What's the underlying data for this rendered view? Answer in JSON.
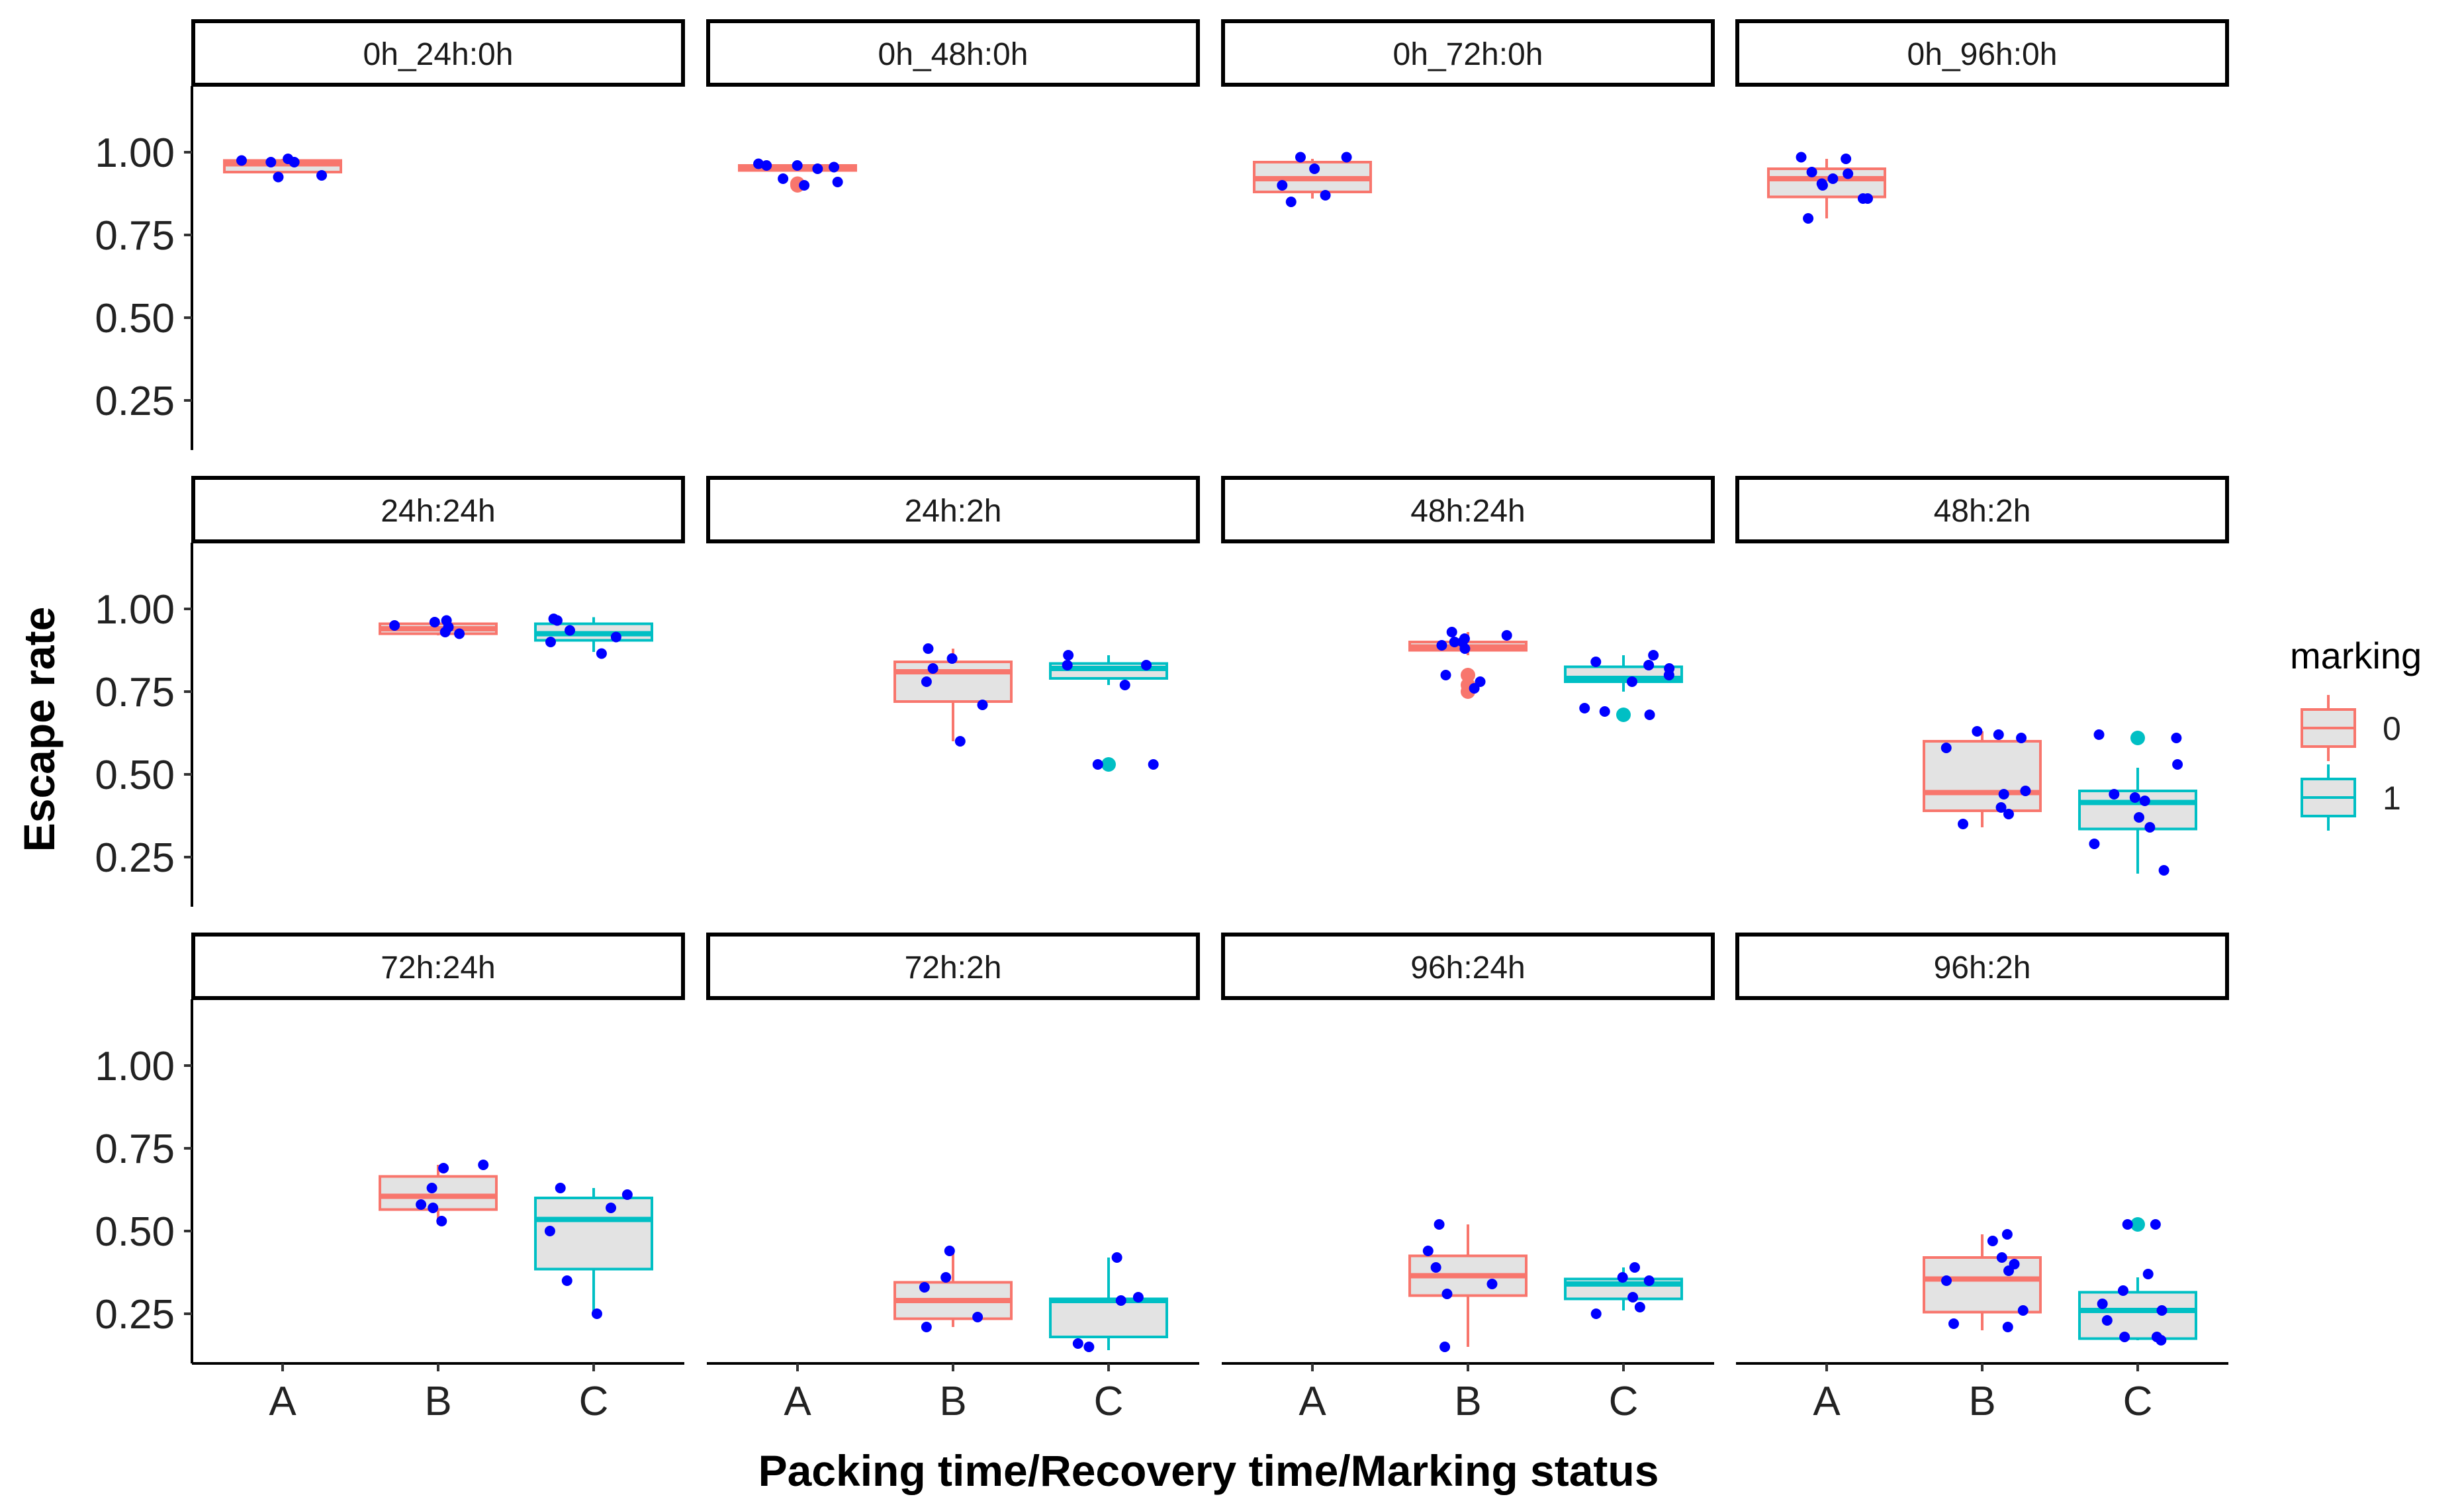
{
  "chart_data": {
    "type": "boxplot",
    "ylabel": "Escape rate",
    "xlabel": "Packing time/Recovery time/Marking status",
    "categories": [
      "A",
      "B",
      "C"
    ],
    "y_ticks": [
      "1.00",
      "0.75",
      "0.50",
      "0.25"
    ],
    "y_tick_values": [
      1.0,
      0.75,
      0.5,
      0.25
    ],
    "ylim": [
      0.1,
      1.2
    ],
    "legend": {
      "title": "marking",
      "placement": "right",
      "entries": [
        {
          "label": "0",
          "color": "#F8766D"
        },
        {
          "label": "1",
          "color": "#00BFC4"
        }
      ]
    },
    "colors": {
      "box_fill": "#E3E3E3",
      "point": "#0000FF",
      "marking_0": "#F8766D",
      "marking_1": "#00BFC4"
    },
    "panels": [
      {
        "label": "0h_24h:0h",
        "boxes": [
          {
            "category": "A",
            "marking": "0",
            "q1": 0.94,
            "median": 0.965,
            "q3": 0.975,
            "whisker_low": 0.94,
            "whisker_high": 0.98,
            "outliers": [],
            "points": [
              0.93,
              0.975,
              0.98,
              0.97,
              0.925,
              0.97
            ]
          }
        ]
      },
      {
        "label": "0h_48h:0h",
        "boxes": [
          {
            "category": "A",
            "marking": "0",
            "q1": 0.945,
            "median": 0.955,
            "q3": 0.96,
            "whisker_low": 0.945,
            "whisker_high": 0.965,
            "outliers": [
              0.9,
              0.905
            ],
            "points": [
              0.91,
              0.965,
              0.96,
              0.96,
              0.955,
              0.92,
              0.9,
              0.95
            ]
          }
        ]
      },
      {
        "label": "0h_72h:0h",
        "boxes": [
          {
            "category": "A",
            "marking": "0",
            "q1": 0.88,
            "median": 0.92,
            "q3": 0.97,
            "whisker_low": 0.86,
            "whisker_high": 0.98,
            "outliers": [],
            "points": [
              0.9,
              0.95,
              0.985,
              0.985,
              0.87,
              0.85
            ]
          }
        ]
      },
      {
        "label": "0h_96h:0h",
        "boxes": [
          {
            "category": "A",
            "marking": "0",
            "q1": 0.865,
            "median": 0.92,
            "q3": 0.95,
            "whisker_low": 0.8,
            "whisker_high": 0.98,
            "outliers": [],
            "points": [
              0.8,
              0.86,
              0.9,
              0.92,
              0.98,
              0.985,
              0.94,
              0.935,
              0.86,
              0.905
            ]
          }
        ]
      },
      {
        "label": "24h:24h",
        "boxes": [
          {
            "category": "B",
            "marking": "0",
            "q1": 0.925,
            "median": 0.94,
            "q3": 0.955,
            "whisker_low": 0.92,
            "whisker_high": 0.97,
            "outliers": [],
            "points": [
              0.925,
              0.93,
              0.945,
              0.96,
              0.965,
              0.95
            ]
          },
          {
            "category": "C",
            "marking": "1",
            "q1": 0.905,
            "median": 0.925,
            "q3": 0.955,
            "whisker_low": 0.87,
            "whisker_high": 0.975,
            "outliers": [],
            "points": [
              0.97,
              0.965,
              0.935,
              0.915,
              0.9,
              0.865
            ]
          }
        ]
      },
      {
        "label": "24h:2h",
        "boxes": [
          {
            "category": "B",
            "marking": "0",
            "q1": 0.72,
            "median": 0.81,
            "q3": 0.84,
            "whisker_low": 0.6,
            "whisker_high": 0.88,
            "outliers": [],
            "points": [
              0.6,
              0.85,
              0.88,
              0.82,
              0.78,
              0.71
            ]
          },
          {
            "category": "C",
            "marking": "1",
            "q1": 0.79,
            "median": 0.82,
            "q3": 0.835,
            "whisker_low": 0.77,
            "whisker_high": 0.86,
            "outliers": [
              0.53
            ],
            "points": [
              0.83,
              0.83,
              0.86,
              0.77,
              0.53,
              0.53
            ]
          }
        ]
      },
      {
        "label": "48h:24h",
        "boxes": [
          {
            "category": "B",
            "marking": "0",
            "q1": 0.875,
            "median": 0.885,
            "q3": 0.9,
            "whisker_low": 0.86,
            "whisker_high": 0.93,
            "outliers": [
              0.75,
              0.77,
              0.8
            ],
            "points": [
              0.88,
              0.9,
              0.92,
              0.93,
              0.91,
              0.9,
              0.8,
              0.78,
              0.76,
              0.89
            ]
          },
          {
            "category": "C",
            "marking": "1",
            "q1": 0.78,
            "median": 0.79,
            "q3": 0.825,
            "whisker_low": 0.75,
            "whisker_high": 0.86,
            "outliers": [
              0.68
            ],
            "points": [
              0.86,
              0.82,
              0.8,
              0.78,
              0.84,
              0.83,
              0.7,
              0.69,
              0.68
            ]
          }
        ]
      },
      {
        "label": "48h:2h",
        "boxes": [
          {
            "category": "B",
            "marking": "0",
            "q1": 0.39,
            "median": 0.445,
            "q3": 0.6,
            "whisker_low": 0.34,
            "whisker_high": 0.63,
            "outliers": [],
            "points": [
              0.4,
              0.38,
              0.35,
              0.62,
              0.61,
              0.58,
              0.44,
              0.45,
              0.63
            ]
          },
          {
            "category": "C",
            "marking": "1",
            "q1": 0.335,
            "median": 0.415,
            "q3": 0.45,
            "whisker_low": 0.2,
            "whisker_high": 0.52,
            "outliers": [
              0.61
            ],
            "points": [
              0.42,
              0.43,
              0.44,
              0.61,
              0.62,
              0.53,
              0.37,
              0.34,
              0.29,
              0.21
            ]
          }
        ]
      },
      {
        "label": "72h:24h",
        "boxes": [
          {
            "category": "B",
            "marking": "0",
            "q1": 0.565,
            "median": 0.605,
            "q3": 0.665,
            "whisker_low": 0.52,
            "whisker_high": 0.7,
            "outliers": [],
            "points": [
              0.63,
              0.7,
              0.69,
              0.58,
              0.57,
              0.53
            ]
          },
          {
            "category": "C",
            "marking": "1",
            "q1": 0.385,
            "median": 0.535,
            "q3": 0.6,
            "whisker_low": 0.25,
            "whisker_high": 0.63,
            "outliers": [],
            "points": [
              0.57,
              0.35,
              0.25,
              0.5,
              0.63,
              0.61
            ]
          }
        ]
      },
      {
        "label": "72h:2h",
        "boxes": [
          {
            "category": "B",
            "marking": "0",
            "q1": 0.235,
            "median": 0.29,
            "q3": 0.345,
            "whisker_low": 0.21,
            "whisker_high": 0.44,
            "outliers": [],
            "points": [
              0.21,
              0.24,
              0.33,
              0.44,
              0.36
            ]
          },
          {
            "category": "C",
            "marking": "1",
            "q1": 0.18,
            "median": 0.29,
            "q3": 0.295,
            "whisker_low": 0.14,
            "whisker_high": 0.42,
            "outliers": [],
            "points": [
              0.3,
              0.42,
              0.29,
              0.16,
              0.15
            ]
          }
        ]
      },
      {
        "label": "96h:24h",
        "boxes": [
          {
            "category": "B",
            "marking": "0",
            "q1": 0.305,
            "median": 0.365,
            "q3": 0.425,
            "whisker_low": 0.15,
            "whisker_high": 0.52,
            "outliers": [],
            "points": [
              0.52,
              0.44,
              0.34,
              0.31,
              0.39,
              0.15
            ]
          },
          {
            "category": "C",
            "marking": "1",
            "q1": 0.295,
            "median": 0.34,
            "q3": 0.355,
            "whisker_low": 0.26,
            "whisker_high": 0.39,
            "outliers": [],
            "points": [
              0.25,
              0.27,
              0.3,
              0.35,
              0.39,
              0.36
            ]
          }
        ]
      },
      {
        "label": "96h:2h",
        "boxes": [
          {
            "category": "B",
            "marking": "0",
            "q1": 0.255,
            "median": 0.355,
            "q3": 0.42,
            "whisker_low": 0.2,
            "whisker_high": 0.49,
            "outliers": [],
            "points": [
              0.42,
              0.49,
              0.26,
              0.21,
              0.22,
              0.38,
              0.4,
              0.47,
              0.35
            ]
          },
          {
            "category": "C",
            "marking": "1",
            "q1": 0.175,
            "median": 0.26,
            "q3": 0.315,
            "whisker_low": 0.17,
            "whisker_high": 0.36,
            "outliers": [
              0.52
            ],
            "points": [
              0.37,
              0.32,
              0.28,
              0.23,
              0.18,
              0.17,
              0.18,
              0.26,
              0.52,
              0.52
            ]
          }
        ]
      }
    ]
  }
}
